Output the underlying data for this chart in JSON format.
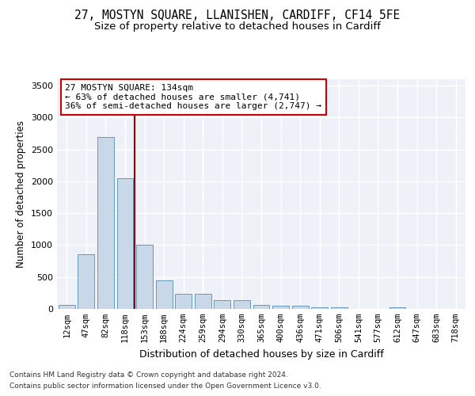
{
  "title1": "27, MOSTYN SQUARE, LLANISHEN, CARDIFF, CF14 5FE",
  "title2": "Size of property relative to detached houses in Cardiff",
  "xlabel": "Distribution of detached houses by size in Cardiff",
  "ylabel": "Number of detached properties",
  "categories": [
    "12sqm",
    "47sqm",
    "82sqm",
    "118sqm",
    "153sqm",
    "188sqm",
    "224sqm",
    "259sqm",
    "294sqm",
    "330sqm",
    "365sqm",
    "400sqm",
    "436sqm",
    "471sqm",
    "506sqm",
    "541sqm",
    "577sqm",
    "612sqm",
    "647sqm",
    "683sqm",
    "718sqm"
  ],
  "values": [
    60,
    860,
    2700,
    2050,
    1010,
    450,
    230,
    230,
    135,
    135,
    60,
    55,
    50,
    30,
    28,
    5,
    5,
    20,
    5,
    5,
    5
  ],
  "bar_color": "#c8d8e8",
  "bar_edge_color": "#6699bb",
  "vline_x": 3.5,
  "vline_color": "#990000",
  "annotation_line1": "27 MOSTYN SQUARE: 134sqm",
  "annotation_line2": "← 63% of detached houses are smaller (4,741)",
  "annotation_line3": "36% of semi-detached houses are larger (2,747) →",
  "annotation_box_color": "#ffffff",
  "annotation_box_edge": "#cc0000",
  "footnote1": "Contains HM Land Registry data © Crown copyright and database right 2024.",
  "footnote2": "Contains public sector information licensed under the Open Government Licence v3.0.",
  "ylim": [
    0,
    3600
  ],
  "plot_bg_color": "#eef2f8",
  "title1_fontsize": 10.5,
  "title2_fontsize": 9.5,
  "xlabel_fontsize": 9,
  "ylabel_fontsize": 8.5,
  "tick_fontsize": 7.5,
  "annotation_fontsize": 8,
  "footnote_fontsize": 6.5
}
